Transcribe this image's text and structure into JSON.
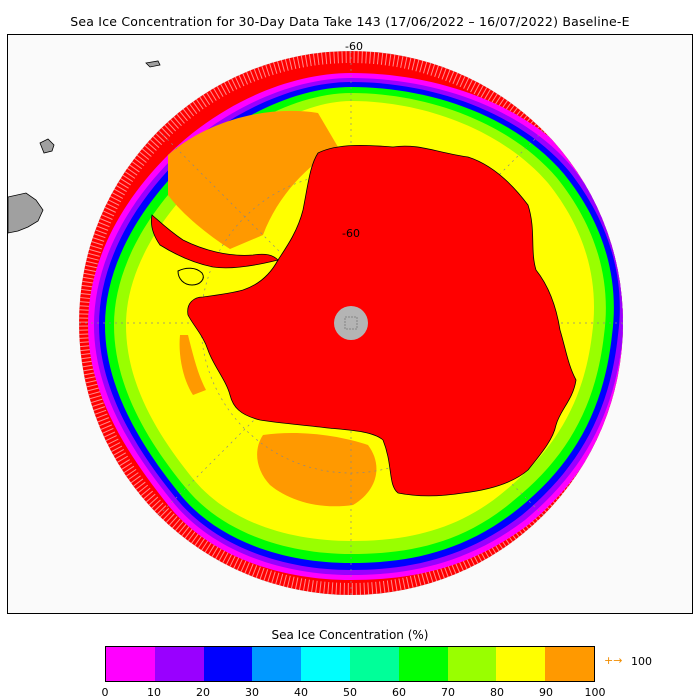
{
  "title": "Sea Ice Concentration for 30-Day Data Take 143 (17/06/2022 – 16/07/2022) Baseline-E",
  "map": {
    "latitude_labels": [
      "-60",
      "-60"
    ],
    "colors": {
      "background": "#fafafa",
      "land": "#ff0000",
      "pole_hole": "#b4b4b4",
      "foreign_land": "#a0a0a0",
      "graticule": "#888888"
    }
  },
  "colorbar": {
    "title": "Sea Ice Concentration (%)",
    "colors": [
      "#ff00ff",
      "#9900ff",
      "#0000ff",
      "#0099ff",
      "#00ffff",
      "#00ff99",
      "#00ff00",
      "#99ff00",
      "#ffff00",
      "#ff9900"
    ],
    "tick_labels": [
      "0",
      "10",
      "20",
      "30",
      "40",
      "50",
      "60",
      "70",
      "80",
      "90",
      "100"
    ],
    "over_arrow": "+→",
    "over_label": "100"
  }
}
